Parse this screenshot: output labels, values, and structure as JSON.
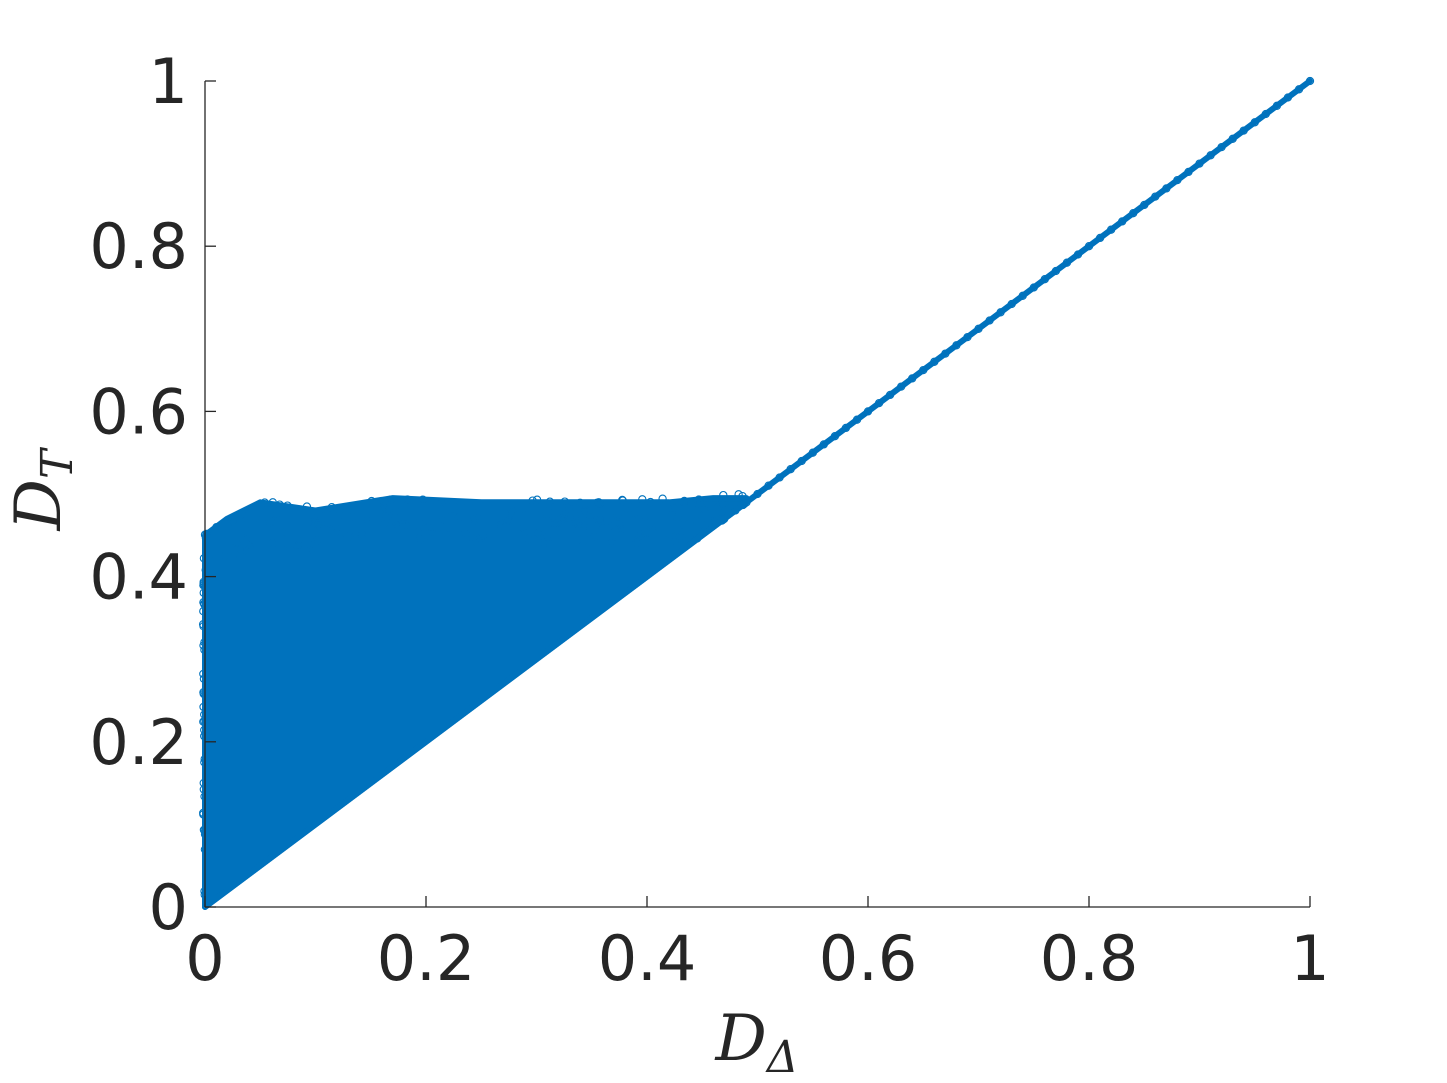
{
  "chart_data": {
    "type": "scatter",
    "title": "",
    "xlabel": {
      "main": "D",
      "sub": "Δ"
    },
    "ylabel": {
      "main": "D",
      "sub": "T"
    },
    "xlim": [
      0,
      1
    ],
    "ylim": [
      0,
      1
    ],
    "xticks": [
      0,
      0.2,
      0.4,
      0.6,
      0.8,
      1
    ],
    "yticks": [
      0,
      0.2,
      0.4,
      0.6,
      0.8,
      1
    ],
    "xtick_labels": [
      "0",
      "0.2",
      "0.4",
      "0.6",
      "0.8",
      "1"
    ],
    "ytick_labels": [
      "0",
      "0.2",
      "0.4",
      "0.6",
      "0.8",
      "1"
    ],
    "grid": false,
    "marker": "circle-open",
    "series_color": "#0072BD",
    "series": [
      {
        "description_of_distribution": "dense cloud of points with y >= x, x in [0, 0.5], y up to about 0.5; single line y = x from 0.5 to 1",
        "region_boundary": [
          [
            0,
            0
          ],
          [
            0,
            0.45
          ],
          [
            0.02,
            0.47
          ],
          [
            0.05,
            0.49
          ],
          [
            0.1,
            0.48
          ],
          [
            0.17,
            0.495
          ],
          [
            0.25,
            0.49
          ],
          [
            0.3,
            0.49
          ],
          [
            0.37,
            0.49
          ],
          [
            0.42,
            0.49
          ],
          [
            0.46,
            0.495
          ],
          [
            0.49,
            0.495
          ],
          [
            0.49,
            0.49
          ],
          [
            0,
            0
          ]
        ],
        "diagonal": {
          "from": [
            0,
            0
          ],
          "to": [
            1,
            1
          ]
        }
      }
    ]
  }
}
